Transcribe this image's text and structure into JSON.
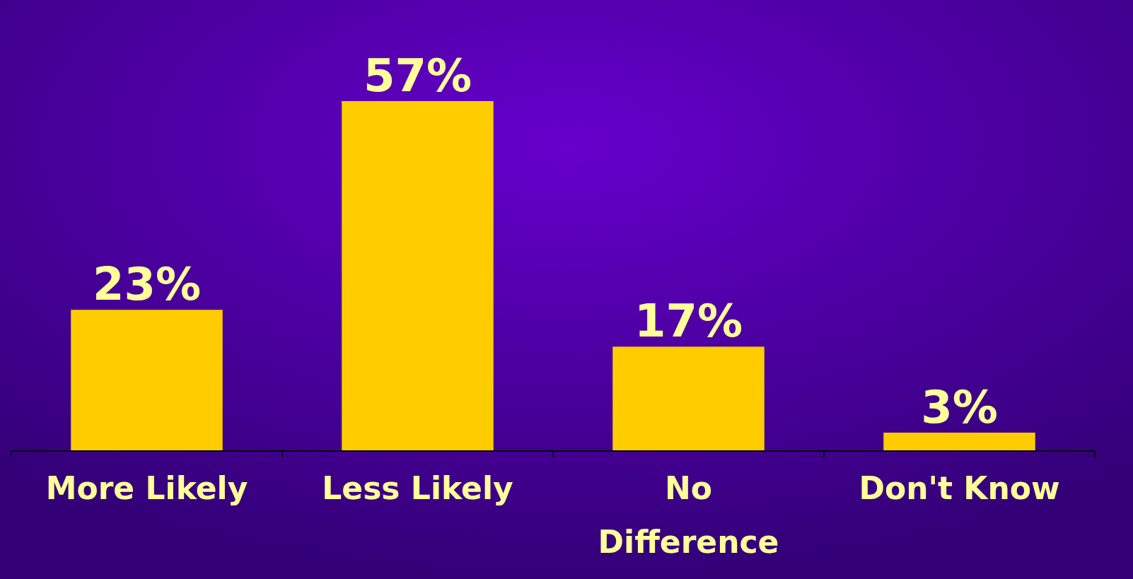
{
  "chart_data": {
    "type": "bar",
    "categories": [
      "More Likely",
      "Less Likely",
      "No Difference",
      "Don't Know"
    ],
    "values": [
      23,
      57,
      17,
      3
    ],
    "value_labels": [
      "23%",
      "57%",
      "17%",
      "3%"
    ],
    "color": "#ffcc00"
  }
}
